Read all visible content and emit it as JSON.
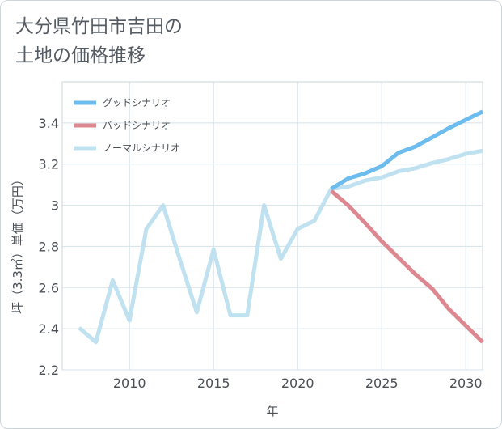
{
  "title_line1": "大分県竹田市吉田の",
  "title_line2": "土地の価格推移",
  "chart_data": {
    "type": "line",
    "xlabel": "年",
    "ylabel": "坪（3.3㎡）単価（万円）",
    "xlim": [
      2006,
      2031
    ],
    "ylim": [
      2.2,
      3.6
    ],
    "x_ticks": [
      2010,
      2015,
      2020,
      2025,
      2030
    ],
    "x_tick_labels": [
      "2010",
      "2015",
      "2020",
      "2025",
      "2030"
    ],
    "y_ticks": [
      2.2,
      2.4,
      2.6,
      2.8,
      3.0,
      3.2,
      3.4
    ],
    "y_tick_labels": [
      "2.2",
      "2.4",
      "2.6",
      "2.8",
      "3",
      "3.2",
      "3.4"
    ],
    "grid": true,
    "legend_position": "top-left",
    "series": [
      {
        "name": "グッドシナリオ",
        "color": "#6cbcee",
        "x": [
          2022,
          2023,
          2024,
          2025,
          2026,
          2027,
          2028,
          2029,
          2030,
          2031
        ],
        "values": [
          3.08,
          3.13,
          3.155,
          3.19,
          3.255,
          3.285,
          3.33,
          3.375,
          3.415,
          3.455
        ]
      },
      {
        "name": "バッドシナリオ",
        "color": "#dd8890",
        "x": [
          2022,
          2023,
          2024,
          2025,
          2026,
          2027,
          2028,
          2029,
          2030,
          2031
        ],
        "values": [
          3.07,
          3.0,
          2.915,
          2.825,
          2.745,
          2.665,
          2.595,
          2.495,
          2.415,
          2.335
        ]
      },
      {
        "name": "ノーマルシナリオ",
        "color": "#bfe1f0",
        "x": [
          2007,
          2008,
          2009,
          2010,
          2011,
          2012,
          2013,
          2014,
          2015,
          2016,
          2017,
          2018,
          2019,
          2020,
          2021,
          2022,
          2023,
          2024,
          2025,
          2026,
          2027,
          2028,
          2029,
          2030,
          2031
        ],
        "values": [
          2.405,
          2.335,
          2.635,
          2.44,
          2.885,
          3.0,
          2.735,
          2.48,
          2.785,
          2.465,
          2.465,
          3.0,
          2.74,
          2.885,
          2.925,
          3.08,
          3.09,
          3.12,
          3.135,
          3.165,
          3.18,
          3.205,
          3.225,
          3.25,
          3.265
        ]
      }
    ]
  }
}
